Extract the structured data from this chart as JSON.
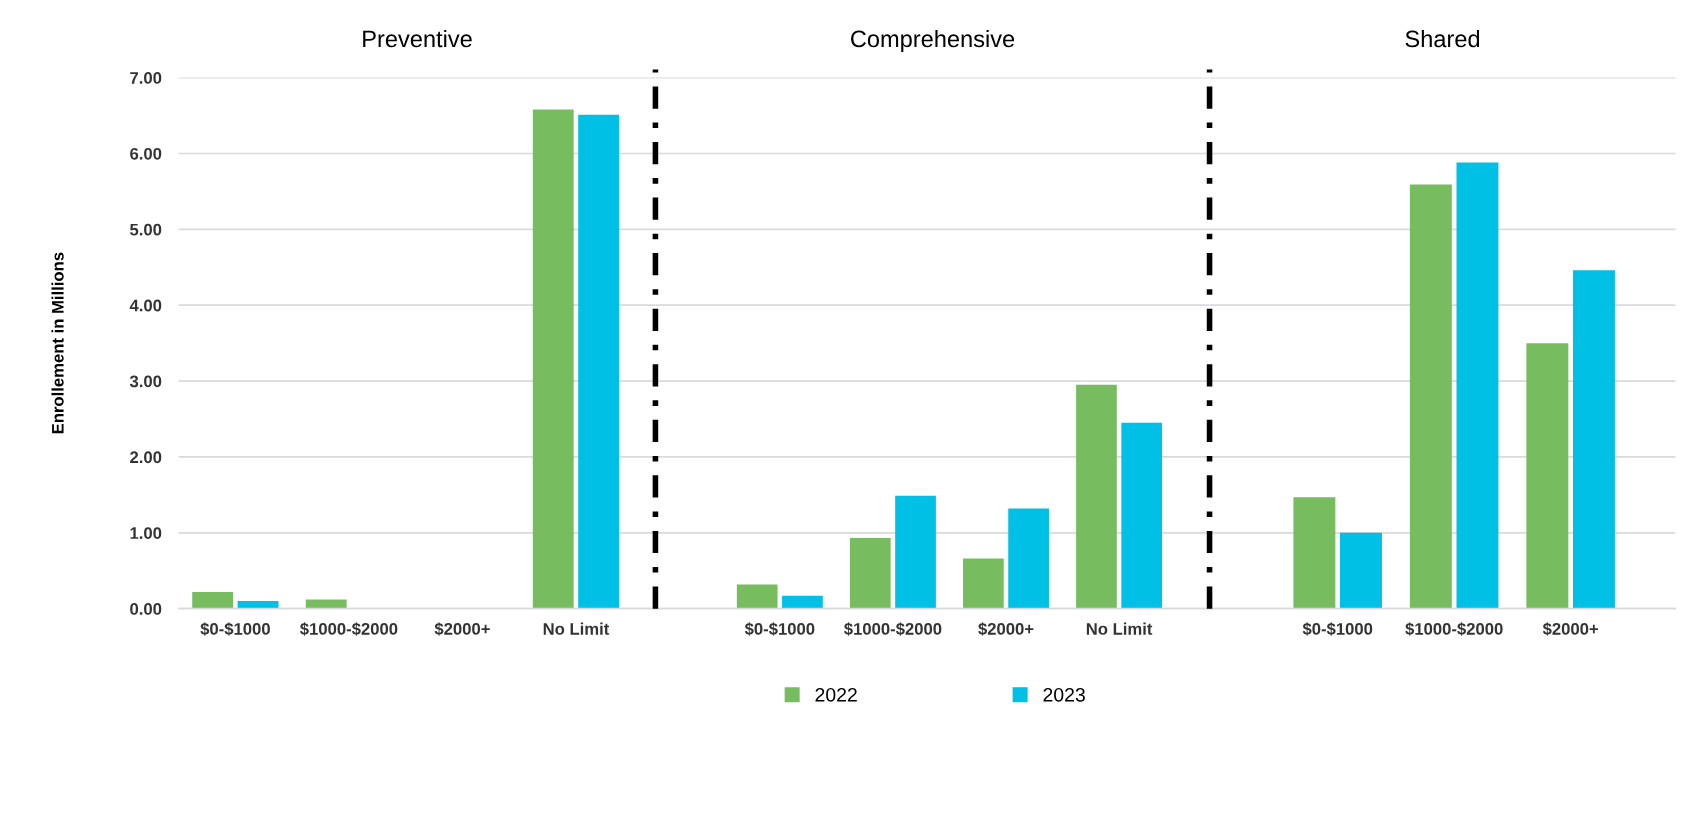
{
  "chart_data": [
    {
      "type": "bar",
      "title": "Preventive",
      "ylabel": "Enrollement in Millions",
      "categories": [
        "$0-$1000",
        "$1000-$2000",
        "$2000+",
        "No Limit"
      ],
      "series": [
        {
          "name": "2022",
          "color": "#77bd5f",
          "values": [
            0.22,
            0.12,
            0,
            6.58
          ]
        },
        {
          "name": "2023",
          "color": "#00c0e6",
          "values": [
            0.1,
            0,
            0,
            6.51
          ]
        }
      ],
      "ylim": [
        0,
        7
      ],
      "yticks": [
        {
          "value": 0,
          "label": "0.00"
        },
        {
          "value": 1,
          "label": "1.00"
        },
        {
          "value": 2,
          "label": "2.00"
        },
        {
          "value": 3,
          "label": "3.00"
        },
        {
          "value": 4,
          "label": "4.00"
        },
        {
          "value": 5,
          "label": "5.00"
        },
        {
          "value": 6,
          "label": "6.00"
        },
        {
          "value": 7,
          "label": "7.00"
        }
      ],
      "grid": "y",
      "legend": "bottom"
    },
    {
      "type": "bar",
      "title": "Comprehensive",
      "categories": [
        "$0-$1000",
        "$1000-$2000",
        "$2000+",
        "No Limit"
      ],
      "series": [
        {
          "name": "2022",
          "color": "#77bd5f",
          "values": [
            0.32,
            0.93,
            0.66,
            2.95
          ]
        },
        {
          "name": "2023",
          "color": "#00c0e6",
          "values": [
            0.17,
            1.49,
            1.32,
            2.45
          ]
        }
      ],
      "ylim": [
        0,
        7
      ],
      "grid": "y",
      "legend": false,
      "tick_labels": "x"
    },
    {
      "type": "bar",
      "title": "Shared",
      "categories": [
        "$0-$1000",
        "$1000-$2000",
        "$2000+"
      ],
      "series": [
        {
          "name": "2022",
          "color": "#77bd5f",
          "values": [
            1.47,
            5.59,
            3.5
          ]
        },
        {
          "name": "2023",
          "color": "#00c0e6",
          "values": [
            1.0,
            5.88,
            4.46
          ]
        }
      ],
      "ylim": [
        0,
        7
      ],
      "grid": "y",
      "legend": false,
      "tick_labels": "x"
    }
  ]
}
